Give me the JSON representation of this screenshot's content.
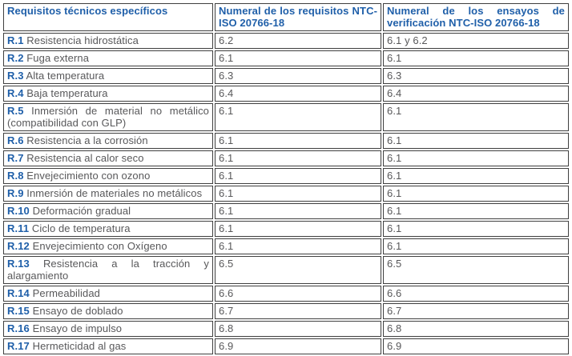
{
  "colors": {
    "header_text": "#1f5fa9",
    "row_id_text": "#1f5fa9",
    "body_text": "#58585a",
    "border": "#3f3f3f",
    "background": "#ffffff"
  },
  "table": {
    "columns": [
      {
        "label": "Requisitos técnicos específicos"
      },
      {
        "label": "Numeral de los requisitos NTC-ISO 20766-18"
      },
      {
        "label": "Numeral de los ensayos de verificación NTC-ISO 20766-18"
      }
    ],
    "rows": [
      {
        "id": "R.1",
        "label": "Resistencia hidrostática",
        "numeral_requisitos": "6.2",
        "numeral_ensayos": "6.1 y 6.2"
      },
      {
        "id": "R.2",
        "label": "Fuga externa",
        "numeral_requisitos": "6.1",
        "numeral_ensayos": "6.1"
      },
      {
        "id": "R.3",
        "label": "Alta temperatura",
        "numeral_requisitos": "6.3",
        "numeral_ensayos": "6.3"
      },
      {
        "id": "R.4",
        "label": "Baja temperatura",
        "numeral_requisitos": "6.4",
        "numeral_ensayos": "6.4"
      },
      {
        "id": "R.5",
        "label": "Inmersión de material no metálico (compatibilidad con GLP)",
        "numeral_requisitos": "6.1",
        "numeral_ensayos": "6.1"
      },
      {
        "id": "R.6",
        "label": "Resistencia a la corrosión",
        "numeral_requisitos": "6.1",
        "numeral_ensayos": "6.1"
      },
      {
        "id": "R.7",
        "label": "Resistencia al calor seco",
        "numeral_requisitos": "6.1",
        "numeral_ensayos": "6.1"
      },
      {
        "id": "R.8",
        "label": "Envejecimiento con ozono",
        "numeral_requisitos": "6.1",
        "numeral_ensayos": "6.1"
      },
      {
        "id": "R.9",
        "label": "Inmersión de materiales no metálicos",
        "numeral_requisitos": "6.1",
        "numeral_ensayos": "6.1"
      },
      {
        "id": "R.10",
        "label": "Deformación gradual",
        "numeral_requisitos": "6.1",
        "numeral_ensayos": "6.1"
      },
      {
        "id": "R.11",
        "label": "Ciclo de temperatura",
        "numeral_requisitos": "6.1",
        "numeral_ensayos": "6.1"
      },
      {
        "id": "R.12",
        "label": "Envejecimiento con Oxígeno",
        "numeral_requisitos": "6.1",
        "numeral_ensayos": "6.1"
      },
      {
        "id": "R.13",
        "label": "Resistencia a la tracción y alargamiento",
        "numeral_requisitos": "6.5",
        "numeral_ensayos": "6.5"
      },
      {
        "id": "R.14",
        "label": "Permeabilidad",
        "numeral_requisitos": "6.6",
        "numeral_ensayos": "6.6"
      },
      {
        "id": "R.15",
        "label": "Ensayo de doblado",
        "numeral_requisitos": "6.7",
        "numeral_ensayos": "6.7"
      },
      {
        "id": "R.16",
        "label": "Ensayo de impulso",
        "numeral_requisitos": "6.8",
        "numeral_ensayos": "6.8"
      },
      {
        "id": "R.17",
        "label": "Hermeticidad al gas",
        "numeral_requisitos": "6.9",
        "numeral_ensayos": "6.9"
      }
    ]
  }
}
